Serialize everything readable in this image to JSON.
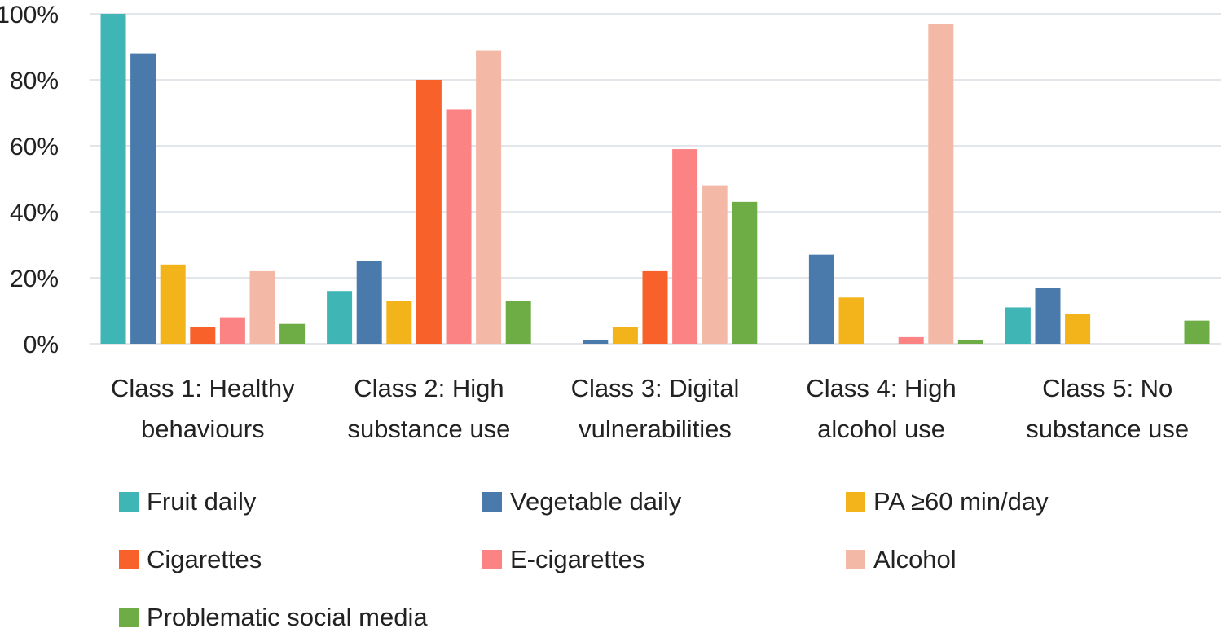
{
  "chart_data": {
    "type": "bar",
    "title": "",
    "xlabel": "",
    "ylabel": "",
    "ylim": [
      0,
      100
    ],
    "yticks": [
      0,
      20,
      40,
      60,
      80,
      100
    ],
    "ytick_labels": [
      "0%",
      "20%",
      "40%",
      "60%",
      "80%",
      "100%"
    ],
    "grid": true,
    "legend_position": "bottom",
    "categories": [
      [
        "Class 1: Healthy",
        "behaviours"
      ],
      [
        "Class 2: High",
        "substance use"
      ],
      [
        "Class 3: Digital",
        "vulnerabilities"
      ],
      [
        "Class 4: High",
        "alcohol use"
      ],
      [
        "Class 5: No",
        "substance use"
      ]
    ],
    "series": [
      {
        "name": "Fruit daily",
        "color": "#3fb6b5",
        "values": [
          100,
          16,
          0,
          0,
          11
        ]
      },
      {
        "name": "Vegetable daily",
        "color": "#4a7aab",
        "values": [
          88,
          25,
          1,
          27,
          17
        ]
      },
      {
        "name": "PA ≥60 min/day",
        "color": "#f2b31b",
        "values": [
          24,
          13,
          5,
          14,
          9
        ]
      },
      {
        "name": "Cigarettes",
        "color": "#f8622a",
        "values": [
          5,
          80,
          22,
          0,
          0
        ]
      },
      {
        "name": "E-cigarettes",
        "color": "#fb8383",
        "values": [
          8,
          71,
          59,
          2,
          0
        ]
      },
      {
        "name": "Alcohol",
        "color": "#f4b8a6",
        "values": [
          22,
          89,
          48,
          97,
          0
        ]
      },
      {
        "name": "Problematic social media",
        "color": "#6eac46",
        "values": [
          6,
          13,
          43,
          1,
          7
        ]
      }
    ]
  }
}
